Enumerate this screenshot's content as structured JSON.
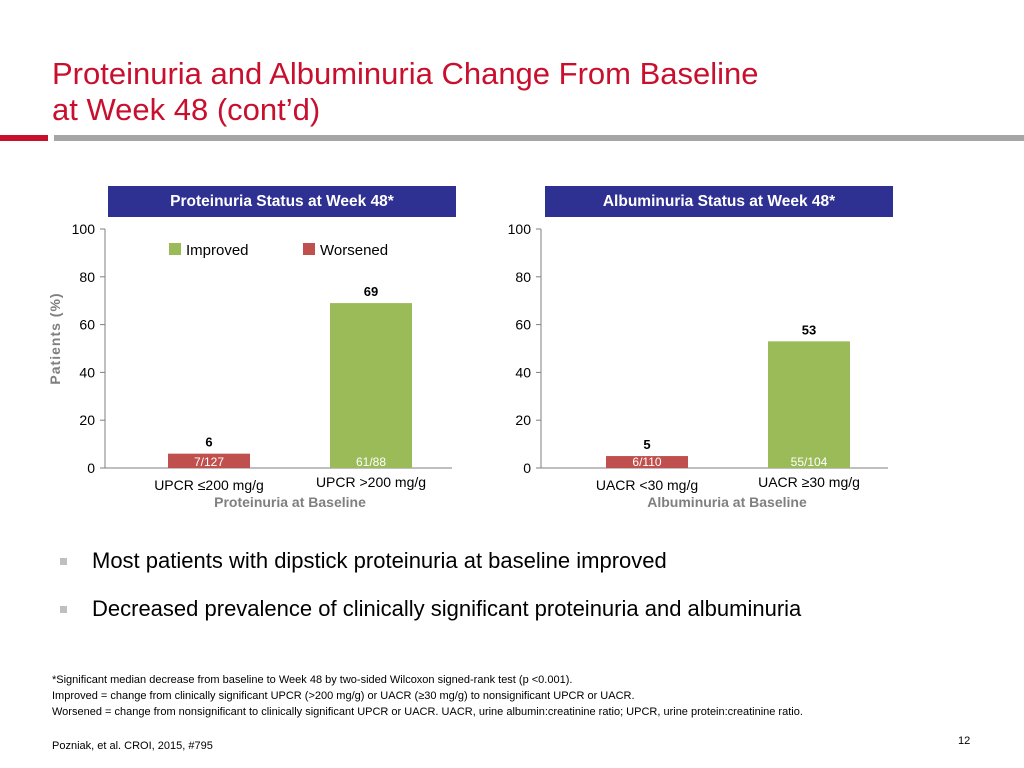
{
  "slide": {
    "title_line1": "Proteinuria and Albuminuria Change From Baseline",
    "title_line2": "at Week 48 (cont’d)",
    "colors": {
      "title": "#c8102e",
      "header": "#2e3192",
      "improved": "#9bbb59",
      "worsened": "#c0504d"
    }
  },
  "chart_data": [
    {
      "type": "bar",
      "title": "Proteinuria Status at Week 48*",
      "ylabel": "Patients (%)",
      "xlabel": "Proteinuria at Baseline",
      "categories": [
        "UPCR ≤200 mg/g",
        "UPCR >200 mg/g"
      ],
      "yticks": [
        "0",
        "20",
        "40",
        "60",
        "80",
        "100"
      ],
      "ylim": [
        0,
        100
      ],
      "legend": {
        "position": "top",
        "entries": [
          "Improved",
          "Worsened"
        ]
      },
      "bars": [
        {
          "category": "UPCR ≤200 mg/g",
          "series": "Worsened",
          "value": 6,
          "label": "6",
          "count": "7/127"
        },
        {
          "category": "UPCR >200 mg/g",
          "series": "Improved",
          "value": 69,
          "label": "69",
          "count": "61/88"
        }
      ]
    },
    {
      "type": "bar",
      "title": "Albuminuria Status at Week 48*",
      "ylabel": "",
      "xlabel": "Albuminuria at Baseline",
      "categories": [
        "UACR <30 mg/g",
        "UACR ≥30 mg/g"
      ],
      "yticks": [
        "0",
        "20",
        "40",
        "60",
        "80",
        "100"
      ],
      "ylim": [
        0,
        100
      ],
      "bars": [
        {
          "category": "UACR <30 mg/g",
          "series": "Worsened",
          "value": 5,
          "label": "5",
          "count": "6/110"
        },
        {
          "category": "UACR ≥30 mg/g",
          "series": "Improved",
          "value": 53,
          "label": "53",
          "count": "55/104"
        }
      ]
    }
  ],
  "bullets": [
    "Most patients with dipstick proteinuria at baseline improved",
    "Decreased prevalence of clinically significant proteinuria and albuminuria"
  ],
  "footnotes": [
    "*Significant median decrease from baseline to Week 48 by two-sided Wilcoxon signed-rank test (p <0.001).",
    "Improved = change from clinically significant UPCR (>200 mg/g) or UACR (≥30 mg/g) to nonsignificant UPCR or UACR.",
    "Worsened = change from nonsignificant to clinically significant UPCR or UACR. UACR, urine albumin:creatinine ratio; UPCR, urine protein:creatinine ratio."
  ],
  "citation": "Pozniak, et al. CROI, 2015, #795",
  "page_number": "12"
}
